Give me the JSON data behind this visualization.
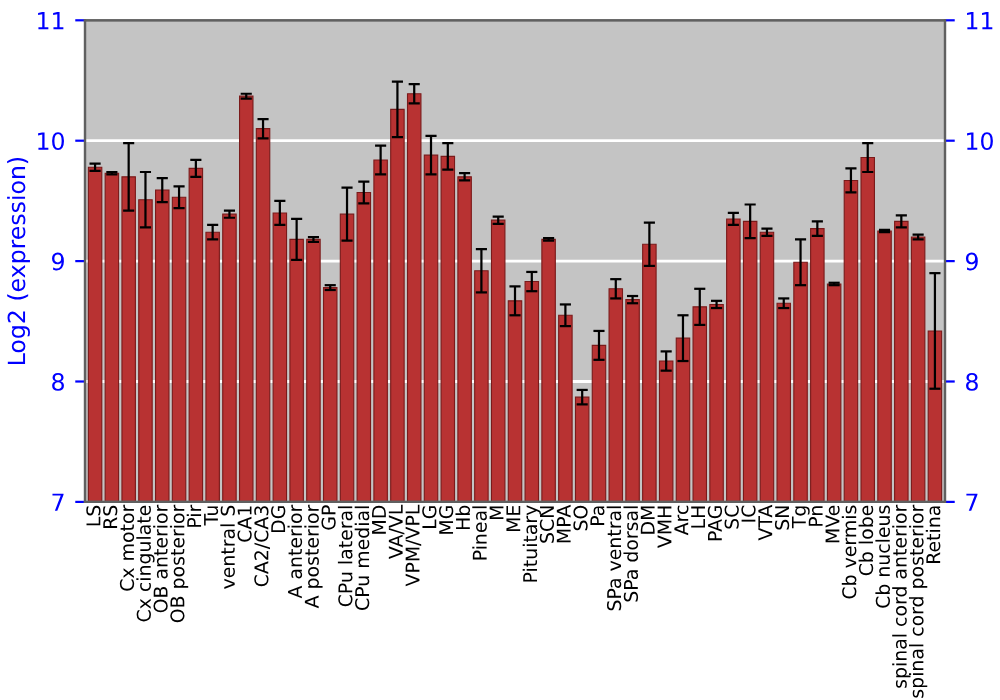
{
  "chart_data": {
    "type": "bar",
    "ylabel": "Log2 (expression)",
    "categories": [
      "LS",
      "RS",
      "Cx motor",
      "Cx cingulate",
      "OB anterior",
      "OB posterior",
      "Pir",
      "Tu",
      "ventral S",
      "CA1",
      "CA2/CA3",
      "DG",
      "A anterior",
      "A posterior",
      "GP",
      "CPu lateral",
      "CPu medial",
      "MD",
      "VA/VL",
      "VPM/VPL",
      "LG",
      "MG",
      "Hb",
      "Pineal",
      "M",
      "ME",
      "Pituitary",
      "SCN",
      "MPA",
      "SO",
      "Pa",
      "SPa ventral",
      "SPa dorsal",
      "DM",
      "VMH",
      "Arc",
      "LH",
      "PAG",
      "SC",
      "IC",
      "VTA",
      "SN",
      "Tg",
      "Pn",
      "MVe",
      "Cb vermis",
      "Cb lobe",
      "Cb nucleus",
      "spinal cord anterior",
      "spinal cord posterior",
      "Retina"
    ],
    "series": [
      {
        "color": "#b83232",
        "values": [
          9.78,
          9.73,
          9.7,
          9.51,
          9.59,
          9.53,
          9.77,
          9.24,
          9.39,
          10.37,
          10.1,
          9.4,
          9.18,
          9.18,
          8.78,
          9.39,
          9.57,
          9.84,
          10.26,
          10.39,
          9.88,
          9.87,
          9.7,
          8.92,
          9.34,
          8.67,
          8.83,
          9.18,
          8.55,
          7.87,
          8.3,
          8.77,
          8.68,
          9.14,
          8.17,
          8.36,
          8.62,
          8.64,
          9.35,
          9.33,
          9.24,
          8.65,
          8.99,
          9.27,
          8.81,
          9.67,
          9.86,
          9.25,
          9.33,
          9.2,
          8.42
        ],
        "errors": [
          0.03,
          0.01,
          0.28,
          0.23,
          0.1,
          0.09,
          0.07,
          0.06,
          0.03,
          0.02,
          0.08,
          0.1,
          0.17,
          0.02,
          0.02,
          0.22,
          0.09,
          0.12,
          0.23,
          0.08,
          0.16,
          0.11,
          0.03,
          0.18,
          0.03,
          0.12,
          0.08,
          0.01,
          0.09,
          0.06,
          0.12,
          0.08,
          0.03,
          0.18,
          0.08,
          0.19,
          0.15,
          0.03,
          0.05,
          0.14,
          0.03,
          0.04,
          0.19,
          0.06,
          0.01,
          0.1,
          0.12,
          0.01,
          0.05,
          0.02,
          0.48
        ]
      }
    ],
    "ylim": [
      7,
      11
    ],
    "yticks": [
      7,
      8,
      9,
      10,
      11
    ],
    "y2lim": [
      7,
      11
    ],
    "y2ticks": [
      7,
      8,
      9,
      10,
      11
    ],
    "grid": "y"
  }
}
